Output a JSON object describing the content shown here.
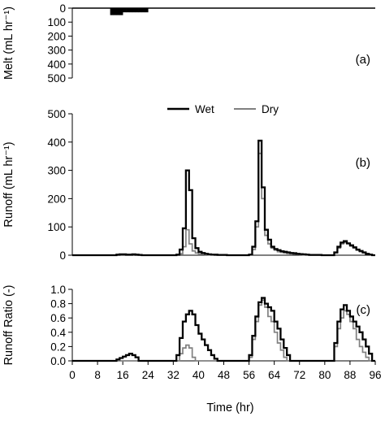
{
  "chart_data": [
    {
      "type": "bar",
      "panel_label": "(a)",
      "ylabel": "Melt (mL hr⁻¹)",
      "ylim": [
        0,
        500
      ],
      "y_inverted": true,
      "yticks": [
        0,
        100,
        200,
        300,
        400,
        500
      ],
      "bin_width_hr": 1,
      "series": [
        {
          "name": "",
          "color": "#000000",
          "x": [
            12,
            13,
            14,
            15,
            16,
            17,
            18,
            19,
            20,
            21,
            22,
            23,
            24,
            25,
            26,
            27,
            28,
            29,
            30,
            31,
            32,
            33,
            34,
            35,
            36,
            37,
            38,
            39,
            40,
            41,
            42,
            43,
            44,
            45,
            46,
            47,
            48,
            49,
            50,
            51,
            52,
            53,
            54,
            55,
            56,
            57,
            58,
            59,
            60,
            61,
            62,
            63,
            64,
            65,
            66,
            67,
            68,
            69,
            70,
            71,
            72,
            73,
            74,
            75,
            76,
            77,
            78,
            79,
            80,
            81,
            82,
            83,
            84,
            85,
            86,
            87,
            88,
            89,
            90,
            91,
            92,
            93,
            94,
            95
          ],
          "values": [
            50,
            50,
            50,
            50,
            30,
            30,
            30,
            30,
            30,
            30,
            30,
            30,
            0,
            0,
            0,
            0,
            0,
            0,
            0,
            0,
            0,
            0,
            0,
            0,
            0,
            0,
            0,
            0,
            0,
            0,
            0,
            0,
            0,
            0,
            0,
            0,
            0,
            0,
            0,
            0,
            0,
            0,
            0,
            0,
            0,
            0,
            0,
            0,
            0,
            0,
            0,
            0,
            0,
            0,
            0,
            0,
            0,
            0,
            0,
            0,
            0,
            0,
            0,
            0,
            0,
            0,
            0,
            0,
            0,
            0,
            0,
            0,
            0,
            0,
            0,
            0,
            0,
            0,
            0,
            0,
            0,
            0,
            0,
            0
          ]
        }
      ]
    },
    {
      "type": "line",
      "panel_label": "(b)",
      "ylabel": "Runoff (mL hr⁻¹)",
      "ylim": [
        0,
        500
      ],
      "yticks": [
        0,
        100,
        200,
        300,
        400,
        500
      ],
      "legend_position": "top-center",
      "series": [
        {
          "name": "Wet",
          "color": "#000000",
          "x": [
            0,
            1,
            2,
            3,
            4,
            5,
            6,
            7,
            8,
            9,
            10,
            11,
            12,
            13,
            14,
            15,
            16,
            17,
            18,
            19,
            20,
            21,
            22,
            23,
            24,
            25,
            26,
            27,
            28,
            29,
            30,
            31,
            32,
            33,
            34,
            35,
            36,
            37,
            38,
            39,
            40,
            41,
            42,
            43,
            44,
            45,
            46,
            47,
            48,
            49,
            50,
            51,
            52,
            53,
            54,
            55,
            56,
            57,
            58,
            59,
            60,
            61,
            62,
            63,
            64,
            65,
            66,
            67,
            68,
            69,
            70,
            71,
            72,
            73,
            74,
            75,
            76,
            77,
            78,
            79,
            80,
            81,
            82,
            83,
            84,
            85,
            86,
            87,
            88,
            89,
            90,
            91,
            92,
            93,
            94,
            95
          ],
          "values": [
            0,
            0,
            0,
            0,
            0,
            0,
            0,
            0,
            0,
            0,
            0,
            0,
            0,
            0,
            2,
            3,
            3,
            2,
            2,
            3,
            2,
            1,
            0,
            0,
            0,
            0,
            0,
            0,
            0,
            0,
            0,
            0,
            0,
            2,
            20,
            95,
            300,
            230,
            60,
            25,
            12,
            8,
            5,
            3,
            2,
            2,
            1,
            1,
            1,
            0,
            0,
            0,
            0,
            0,
            0,
            0,
            2,
            30,
            120,
            405,
            240,
            90,
            55,
            30,
            22,
            18,
            14,
            12,
            10,
            8,
            7,
            5,
            4,
            3,
            2,
            1,
            1,
            1,
            1,
            0,
            0,
            0,
            0,
            10,
            30,
            45,
            50,
            42,
            35,
            28,
            20,
            15,
            10,
            5,
            2,
            0
          ]
        },
        {
          "name": "Dry",
          "color": "#808080",
          "x": [
            0,
            1,
            2,
            3,
            4,
            5,
            6,
            7,
            8,
            9,
            10,
            11,
            12,
            13,
            14,
            15,
            16,
            17,
            18,
            19,
            20,
            21,
            22,
            23,
            24,
            25,
            26,
            27,
            28,
            29,
            30,
            31,
            32,
            33,
            34,
            35,
            36,
            37,
            38,
            39,
            40,
            41,
            42,
            43,
            44,
            45,
            46,
            47,
            48,
            49,
            50,
            51,
            52,
            53,
            54,
            55,
            56,
            57,
            58,
            59,
            60,
            61,
            62,
            63,
            64,
            65,
            66,
            67,
            68,
            69,
            70,
            71,
            72,
            73,
            74,
            75,
            76,
            77,
            78,
            79,
            80,
            81,
            82,
            83,
            84,
            85,
            86,
            87,
            88,
            89,
            90,
            91,
            92,
            93,
            94,
            95
          ],
          "values": [
            0,
            0,
            0,
            0,
            0,
            0,
            0,
            0,
            0,
            0,
            0,
            0,
            0,
            0,
            0,
            0,
            0,
            0,
            0,
            0,
            0,
            0,
            0,
            0,
            0,
            0,
            0,
            0,
            0,
            0,
            0,
            0,
            0,
            0,
            5,
            30,
            90,
            40,
            15,
            8,
            5,
            3,
            2,
            1,
            1,
            0,
            0,
            0,
            0,
            0,
            0,
            0,
            0,
            0,
            0,
            0,
            1,
            20,
            100,
            360,
            200,
            70,
            40,
            25,
            18,
            12,
            10,
            8,
            6,
            5,
            4,
            3,
            2,
            1,
            1,
            0,
            0,
            0,
            0,
            0,
            0,
            0,
            0,
            8,
            25,
            40,
            45,
            40,
            32,
            25,
            18,
            12,
            8,
            4,
            1,
            0
          ]
        }
      ]
    },
    {
      "type": "line",
      "panel_label": "(c)",
      "ylabel": "Runoff Ratio (-)",
      "ylim": [
        0,
        1.0
      ],
      "yticks": [
        0.0,
        0.2,
        0.4,
        0.6,
        0.8,
        1.0
      ],
      "ytick_labels": [
        "0.0",
        "0.2",
        "0.4",
        "0.6",
        "0.8",
        "1.0"
      ],
      "xlabel": "Time (hr)",
      "xlim": [
        0,
        96
      ],
      "xticks": [
        0,
        8,
        16,
        24,
        32,
        40,
        48,
        56,
        64,
        72,
        80,
        88,
        96
      ],
      "xtick_labels": [
        "0",
        "8",
        "16",
        "24",
        "32",
        "40",
        "48",
        "56",
        "64",
        "72",
        "80",
        "88",
        "96"
      ],
      "series": [
        {
          "name": "Wet",
          "color": "#000000",
          "x": [
            0,
            1,
            2,
            3,
            4,
            5,
            6,
            7,
            8,
            9,
            10,
            11,
            12,
            13,
            14,
            15,
            16,
            17,
            18,
            19,
            20,
            21,
            22,
            23,
            24,
            25,
            26,
            27,
            28,
            29,
            30,
            31,
            32,
            33,
            34,
            35,
            36,
            37,
            38,
            39,
            40,
            41,
            42,
            43,
            44,
            45,
            46,
            47,
            48,
            49,
            50,
            51,
            52,
            53,
            54,
            55,
            56,
            57,
            58,
            59,
            60,
            61,
            62,
            63,
            64,
            65,
            66,
            67,
            68,
            69,
            70,
            71,
            72,
            73,
            74,
            75,
            76,
            77,
            78,
            79,
            80,
            81,
            82,
            83,
            84,
            85,
            86,
            87,
            88,
            89,
            90,
            91,
            92,
            93,
            94,
            95
          ],
          "values": [
            0,
            0,
            0,
            0,
            0,
            0,
            0,
            0,
            0,
            0,
            0,
            0,
            0,
            0,
            0.02,
            0.04,
            0.06,
            0.08,
            0.1,
            0.08,
            0.05,
            0,
            0,
            0,
            0,
            0,
            0,
            0,
            0,
            0,
            0,
            0,
            0,
            0.08,
            0.32,
            0.55,
            0.65,
            0.7,
            0.65,
            0.5,
            0.38,
            0.3,
            0.22,
            0.15,
            0.08,
            0.03,
            0,
            0,
            0,
            0,
            0,
            0,
            0,
            0,
            0,
            0,
            0.08,
            0.35,
            0.62,
            0.82,
            0.88,
            0.8,
            0.75,
            0.7,
            0.55,
            0.45,
            0.3,
            0.18,
            0.08,
            0,
            0,
            0,
            0,
            0,
            0,
            0,
            0,
            0,
            0,
            0,
            0,
            0,
            0,
            0.25,
            0.55,
            0.72,
            0.78,
            0.7,
            0.62,
            0.55,
            0.48,
            0.4,
            0.3,
            0.2,
            0.1,
            0
          ]
        },
        {
          "name": "Dry",
          "color": "#808080",
          "x": [
            0,
            1,
            2,
            3,
            4,
            5,
            6,
            7,
            8,
            9,
            10,
            11,
            12,
            13,
            14,
            15,
            16,
            17,
            18,
            19,
            20,
            21,
            22,
            23,
            24,
            25,
            26,
            27,
            28,
            29,
            30,
            31,
            32,
            33,
            34,
            35,
            36,
            37,
            38,
            39,
            40,
            41,
            42,
            43,
            44,
            45,
            46,
            47,
            48,
            49,
            50,
            51,
            52,
            53,
            54,
            55,
            56,
            57,
            58,
            59,
            60,
            61,
            62,
            63,
            64,
            65,
            66,
            67,
            68,
            69,
            70,
            71,
            72,
            73,
            74,
            75,
            76,
            77,
            78,
            79,
            80,
            81,
            82,
            83,
            84,
            85,
            86,
            87,
            88,
            89,
            90,
            91,
            92,
            93,
            94,
            95
          ],
          "values": [
            0,
            0,
            0,
            0,
            0,
            0,
            0,
            0,
            0,
            0,
            0,
            0,
            0,
            0,
            0,
            0,
            0,
            0,
            0,
            0,
            0,
            0,
            0,
            0,
            0,
            0,
            0,
            0,
            0,
            0,
            0,
            0,
            0,
            0,
            0.1,
            0.18,
            0.22,
            0.18,
            0.05,
            0,
            0,
            0,
            0,
            0,
            0,
            0,
            0,
            0,
            0,
            0,
            0,
            0,
            0,
            0,
            0,
            0,
            0.05,
            0.3,
            0.55,
            0.78,
            0.85,
            0.75,
            0.62,
            0.55,
            0.4,
            0.25,
            0.15,
            0.05,
            0,
            0,
            0,
            0,
            0,
            0,
            0,
            0,
            0,
            0,
            0,
            0,
            0,
            0,
            0,
            0.2,
            0.45,
            0.6,
            0.7,
            0.65,
            0.55,
            0.45,
            0.3,
            0.2,
            0.12,
            0.05,
            0,
            0
          ]
        }
      ]
    }
  ]
}
